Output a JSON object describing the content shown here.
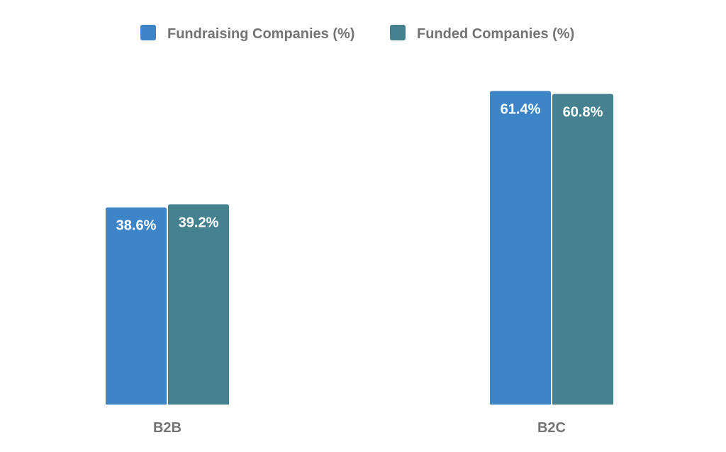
{
  "chart_data": {
    "type": "bar",
    "categories": [
      "B2B",
      "B2C"
    ],
    "series": [
      {
        "name": "Fundraising Companies (%)",
        "values": [
          38.6,
          61.4
        ],
        "labels": [
          "38.6%",
          "61.4%"
        ],
        "color": "#3d85c6"
      },
      {
        "name": "Funded Companies (%)",
        "values": [
          39.2,
          60.8
        ],
        "labels": [
          "39.2%",
          "60.8%"
        ],
        "color": "#45818e"
      }
    ],
    "title": "",
    "xlabel": "",
    "ylabel": "",
    "ylim": [
      0,
      62
    ],
    "grid": false,
    "legend_position": "top-center"
  }
}
